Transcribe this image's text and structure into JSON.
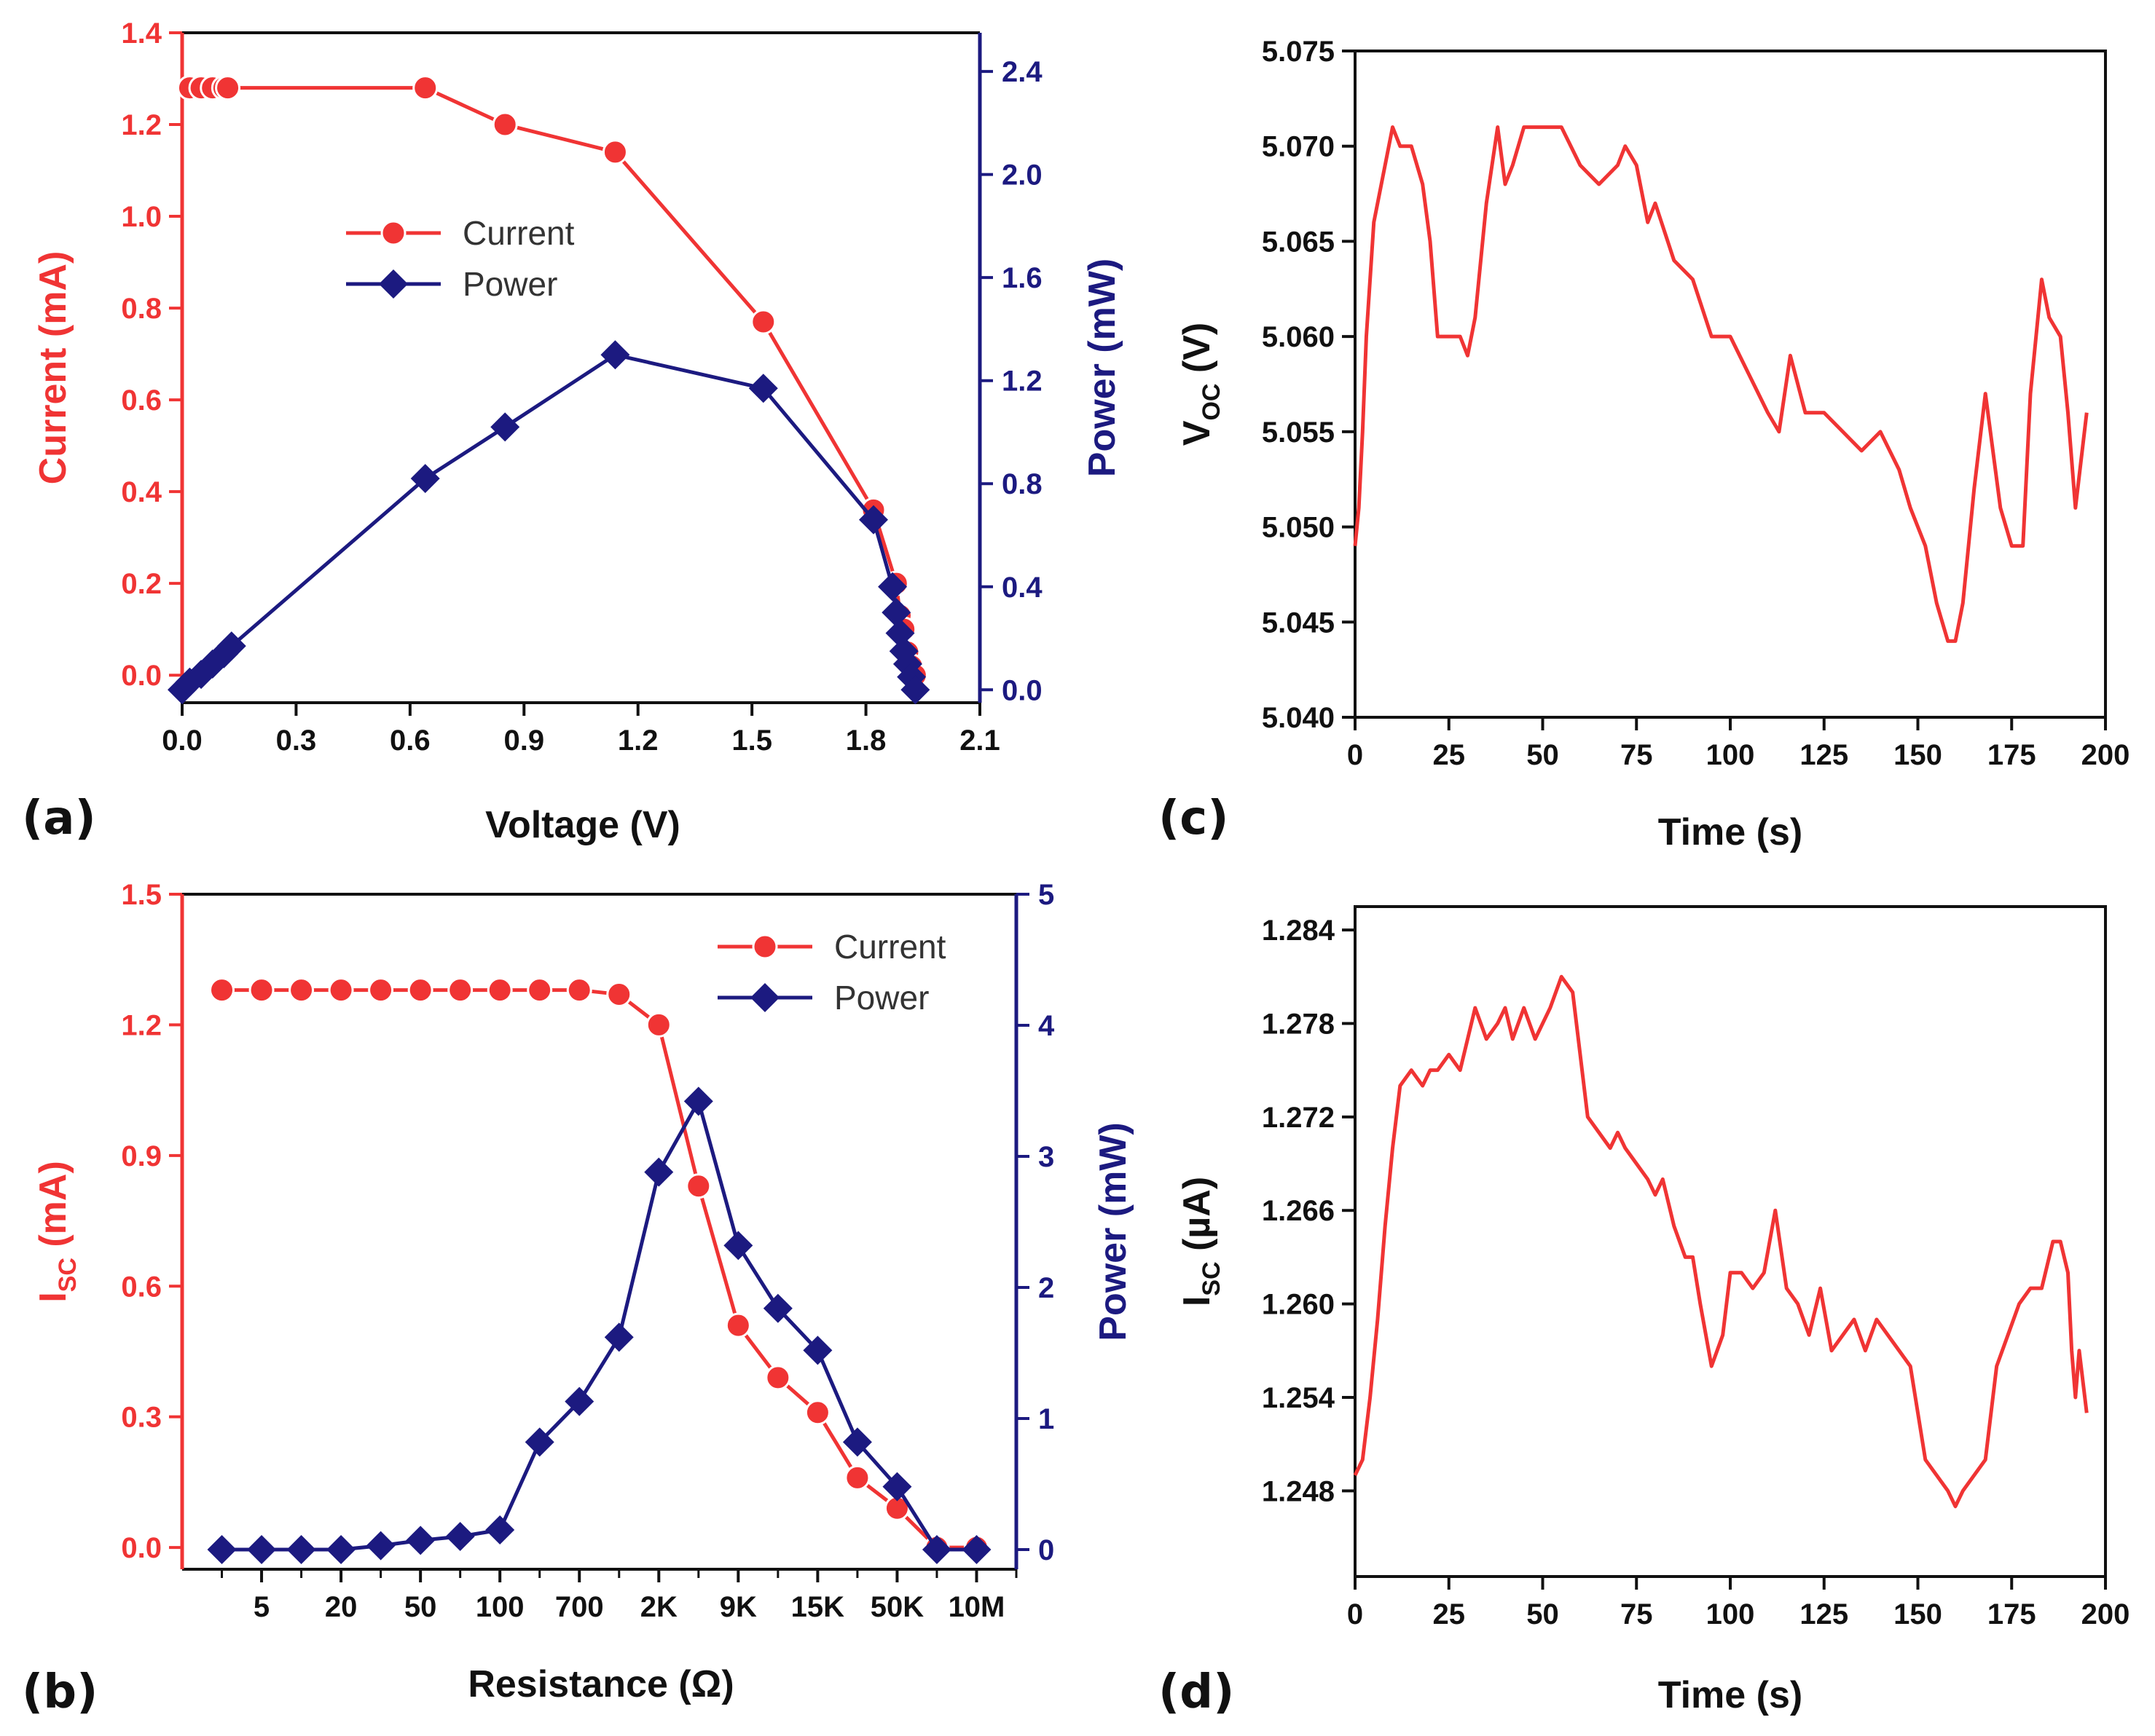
{
  "colors": {
    "red": "#f03434",
    "blue": "#1c1a80",
    "black": "#111111"
  },
  "chart_data": [
    {
      "id": "a",
      "type": "line",
      "panel_label": "(a)",
      "xlabel": "Voltage (V)",
      "ylabel": "Current (mA)",
      "ylabel_right": "Power (mW)",
      "xlim": [
        0,
        2.1
      ],
      "ylim": [
        -0.06,
        1.4
      ],
      "ylim_right": [
        -0.05,
        2.55
      ],
      "xticks": [
        "0.0",
        "0.3",
        "0.6",
        "0.9",
        "1.2",
        "1.5",
        "1.8",
        "2.1"
      ],
      "yticks": [
        "0.0",
        "0.2",
        "0.4",
        "0.6",
        "0.8",
        "1.0",
        "1.2",
        "1.4"
      ],
      "yticks_right": [
        "0.0",
        "0.4",
        "0.8",
        "1.2",
        "1.6",
        "2.0",
        "2.4"
      ],
      "legend": [
        "Current",
        "Power"
      ],
      "series": [
        {
          "name": "Current",
          "axis": "left",
          "marker": "circle",
          "x": [
            0.02,
            0.05,
            0.08,
            0.11,
            0.12,
            0.64,
            0.85,
            1.14,
            1.53,
            1.82,
            1.88,
            1.89,
            1.9,
            1.91,
            1.92,
            1.93
          ],
          "y": [
            1.28,
            1.28,
            1.28,
            1.28,
            1.28,
            1.28,
            1.2,
            1.14,
            0.77,
            0.36,
            0.2,
            0.13,
            0.1,
            0.05,
            0.02,
            0.0
          ]
        },
        {
          "name": "Power",
          "axis": "right",
          "marker": "diamond",
          "x": [
            0.0,
            0.02,
            0.05,
            0.08,
            0.11,
            0.13,
            0.64,
            0.85,
            1.14,
            1.53,
            1.82,
            1.87,
            1.88,
            1.89,
            1.9,
            1.91,
            1.92,
            1.93
          ],
          "y": [
            0.0,
            0.03,
            0.06,
            0.1,
            0.14,
            0.17,
            0.82,
            1.02,
            1.3,
            1.17,
            0.66,
            0.4,
            0.3,
            0.22,
            0.15,
            0.1,
            0.05,
            0.0
          ]
        }
      ]
    },
    {
      "id": "b",
      "type": "line",
      "panel_label": "(b)",
      "xlabel": "Resistance (Ω)",
      "ylabel": "I",
      "ylabel_sub": "SC",
      "ylabel_unit": " (mA)",
      "ylabel_right": "Power (mW)",
      "ylim": [
        -0.05,
        1.5
      ],
      "ylim_right": [
        -0.15,
        5.0
      ],
      "xticks": [
        "5",
        "20",
        "50",
        "100",
        "700",
        "2K",
        "9K",
        "15K",
        "50K",
        "10M"
      ],
      "xtick_positions": [
        2,
        4,
        6,
        8,
        10,
        12,
        14,
        16,
        18,
        20
      ],
      "xlim": [
        0,
        21
      ],
      "yticks": [
        "0.0",
        "0.3",
        "0.6",
        "0.9",
        "1.2",
        "1.5"
      ],
      "yticks_right": [
        "0",
        "1",
        "2",
        "3",
        "4",
        "5"
      ],
      "legend": [
        "Current",
        "Power"
      ],
      "series": [
        {
          "name": "Current",
          "axis": "left",
          "marker": "circle",
          "x": [
            1,
            2,
            3,
            4,
            5,
            6,
            7,
            8,
            9,
            10,
            11,
            12,
            13,
            14,
            15,
            16,
            17,
            18,
            19,
            20
          ],
          "y": [
            1.28,
            1.28,
            1.28,
            1.28,
            1.28,
            1.28,
            1.28,
            1.28,
            1.28,
            1.28,
            1.27,
            1.2,
            0.83,
            0.51,
            0.39,
            0.31,
            0.16,
            0.09,
            0.0,
            0.0
          ]
        },
        {
          "name": "Power",
          "axis": "right",
          "marker": "diamond",
          "x": [
            1,
            2,
            3,
            4,
            5,
            6,
            7,
            8,
            9,
            10,
            11,
            12,
            13,
            14,
            15,
            16,
            17,
            18,
            19,
            20
          ],
          "y": [
            0.0,
            0.0,
            0.0,
            0.0,
            0.03,
            0.07,
            0.1,
            0.15,
            0.82,
            1.13,
            1.62,
            2.88,
            3.42,
            2.32,
            1.84,
            1.52,
            0.82,
            0.48,
            0.0,
            0.0
          ]
        }
      ]
    },
    {
      "id": "c",
      "type": "line",
      "panel_label": "(c)",
      "xlabel": "Time (s)",
      "ylabel": "V",
      "ylabel_sub": "OC",
      "ylabel_unit": " (V)",
      "xlim": [
        0,
        200
      ],
      "ylim": [
        5.04,
        5.075
      ],
      "xticks": [
        "0",
        "25",
        "50",
        "75",
        "100",
        "125",
        "150",
        "175",
        "200"
      ],
      "yticks": [
        "5.040",
        "5.045",
        "5.050",
        "5.055",
        "5.060",
        "5.065",
        "5.070",
        "5.075"
      ],
      "series": [
        {
          "name": "VOC",
          "x": [
            0,
            1,
            2,
            3,
            5,
            8,
            10,
            12,
            15,
            18,
            20,
            22,
            25,
            28,
            30,
            32,
            35,
            38,
            40,
            42,
            45,
            50,
            55,
            60,
            65,
            70,
            72,
            75,
            78,
            80,
            85,
            90,
            95,
            100,
            105,
            110,
            113,
            116,
            120,
            125,
            130,
            135,
            140,
            145,
            148,
            152,
            155,
            158,
            160,
            162,
            165,
            168,
            172,
            175,
            178,
            180,
            183,
            185,
            188,
            190,
            192,
            195
          ],
          "y": [
            5.049,
            5.051,
            5.055,
            5.06,
            5.066,
            5.069,
            5.071,
            5.07,
            5.07,
            5.068,
            5.065,
            5.06,
            5.06,
            5.06,
            5.059,
            5.061,
            5.067,
            5.071,
            5.068,
            5.069,
            5.071,
            5.071,
            5.071,
            5.069,
            5.068,
            5.069,
            5.07,
            5.069,
            5.066,
            5.067,
            5.064,
            5.063,
            5.06,
            5.06,
            5.058,
            5.056,
            5.055,
            5.059,
            5.056,
            5.056,
            5.055,
            5.054,
            5.055,
            5.053,
            5.051,
            5.049,
            5.046,
            5.044,
            5.044,
            5.046,
            5.052,
            5.057,
            5.051,
            5.049,
            5.049,
            5.057,
            5.063,
            5.061,
            5.06,
            5.056,
            5.051,
            5.056
          ]
        }
      ]
    },
    {
      "id": "d",
      "type": "line",
      "panel_label": "(d)",
      "xlabel": "Time (s)",
      "ylabel": "I",
      "ylabel_sub": "SC",
      "ylabel_unit": " (µA)",
      "xlim": [
        0,
        200
      ],
      "ylim": [
        1.2425,
        1.2855
      ],
      "xticks": [
        "0",
        "25",
        "50",
        "75",
        "100",
        "125",
        "150",
        "175",
        "200"
      ],
      "yticks": [
        "1.248",
        "1.254",
        "1.260",
        "1.266",
        "1.272",
        "1.278",
        "1.284"
      ],
      "series": [
        {
          "name": "ISC",
          "x": [
            0,
            2,
            4,
            6,
            8,
            10,
            12,
            15,
            18,
            20,
            22,
            25,
            28,
            30,
            32,
            35,
            38,
            40,
            42,
            45,
            48,
            50,
            52,
            55,
            58,
            60,
            62,
            65,
            68,
            70,
            72,
            75,
            78,
            80,
            82,
            85,
            88,
            90,
            92,
            95,
            98,
            100,
            103,
            106,
            109,
            112,
            115,
            118,
            121,
            124,
            127,
            130,
            133,
            136,
            139,
            142,
            145,
            148,
            150,
            152,
            155,
            158,
            160,
            162,
            165,
            168,
            171,
            174,
            177,
            180,
            183,
            186,
            188,
            190,
            191,
            192,
            193,
            195
          ],
          "y": [
            1.249,
            1.25,
            1.254,
            1.259,
            1.265,
            1.27,
            1.274,
            1.275,
            1.274,
            1.275,
            1.275,
            1.276,
            1.275,
            1.277,
            1.279,
            1.277,
            1.278,
            1.279,
            1.277,
            1.279,
            1.277,
            1.278,
            1.279,
            1.281,
            1.28,
            1.276,
            1.272,
            1.271,
            1.27,
            1.271,
            1.27,
            1.269,
            1.268,
            1.267,
            1.268,
            1.265,
            1.263,
            1.263,
            1.26,
            1.256,
            1.258,
            1.262,
            1.262,
            1.261,
            1.262,
            1.266,
            1.261,
            1.26,
            1.258,
            1.261,
            1.257,
            1.258,
            1.259,
            1.257,
            1.259,
            1.258,
            1.257,
            1.256,
            1.253,
            1.25,
            1.249,
            1.248,
            1.247,
            1.248,
            1.249,
            1.25,
            1.256,
            1.258,
            1.26,
            1.261,
            1.261,
            1.264,
            1.264,
            1.262,
            1.257,
            1.254,
            1.257,
            1.253
          ]
        }
      ]
    }
  ]
}
